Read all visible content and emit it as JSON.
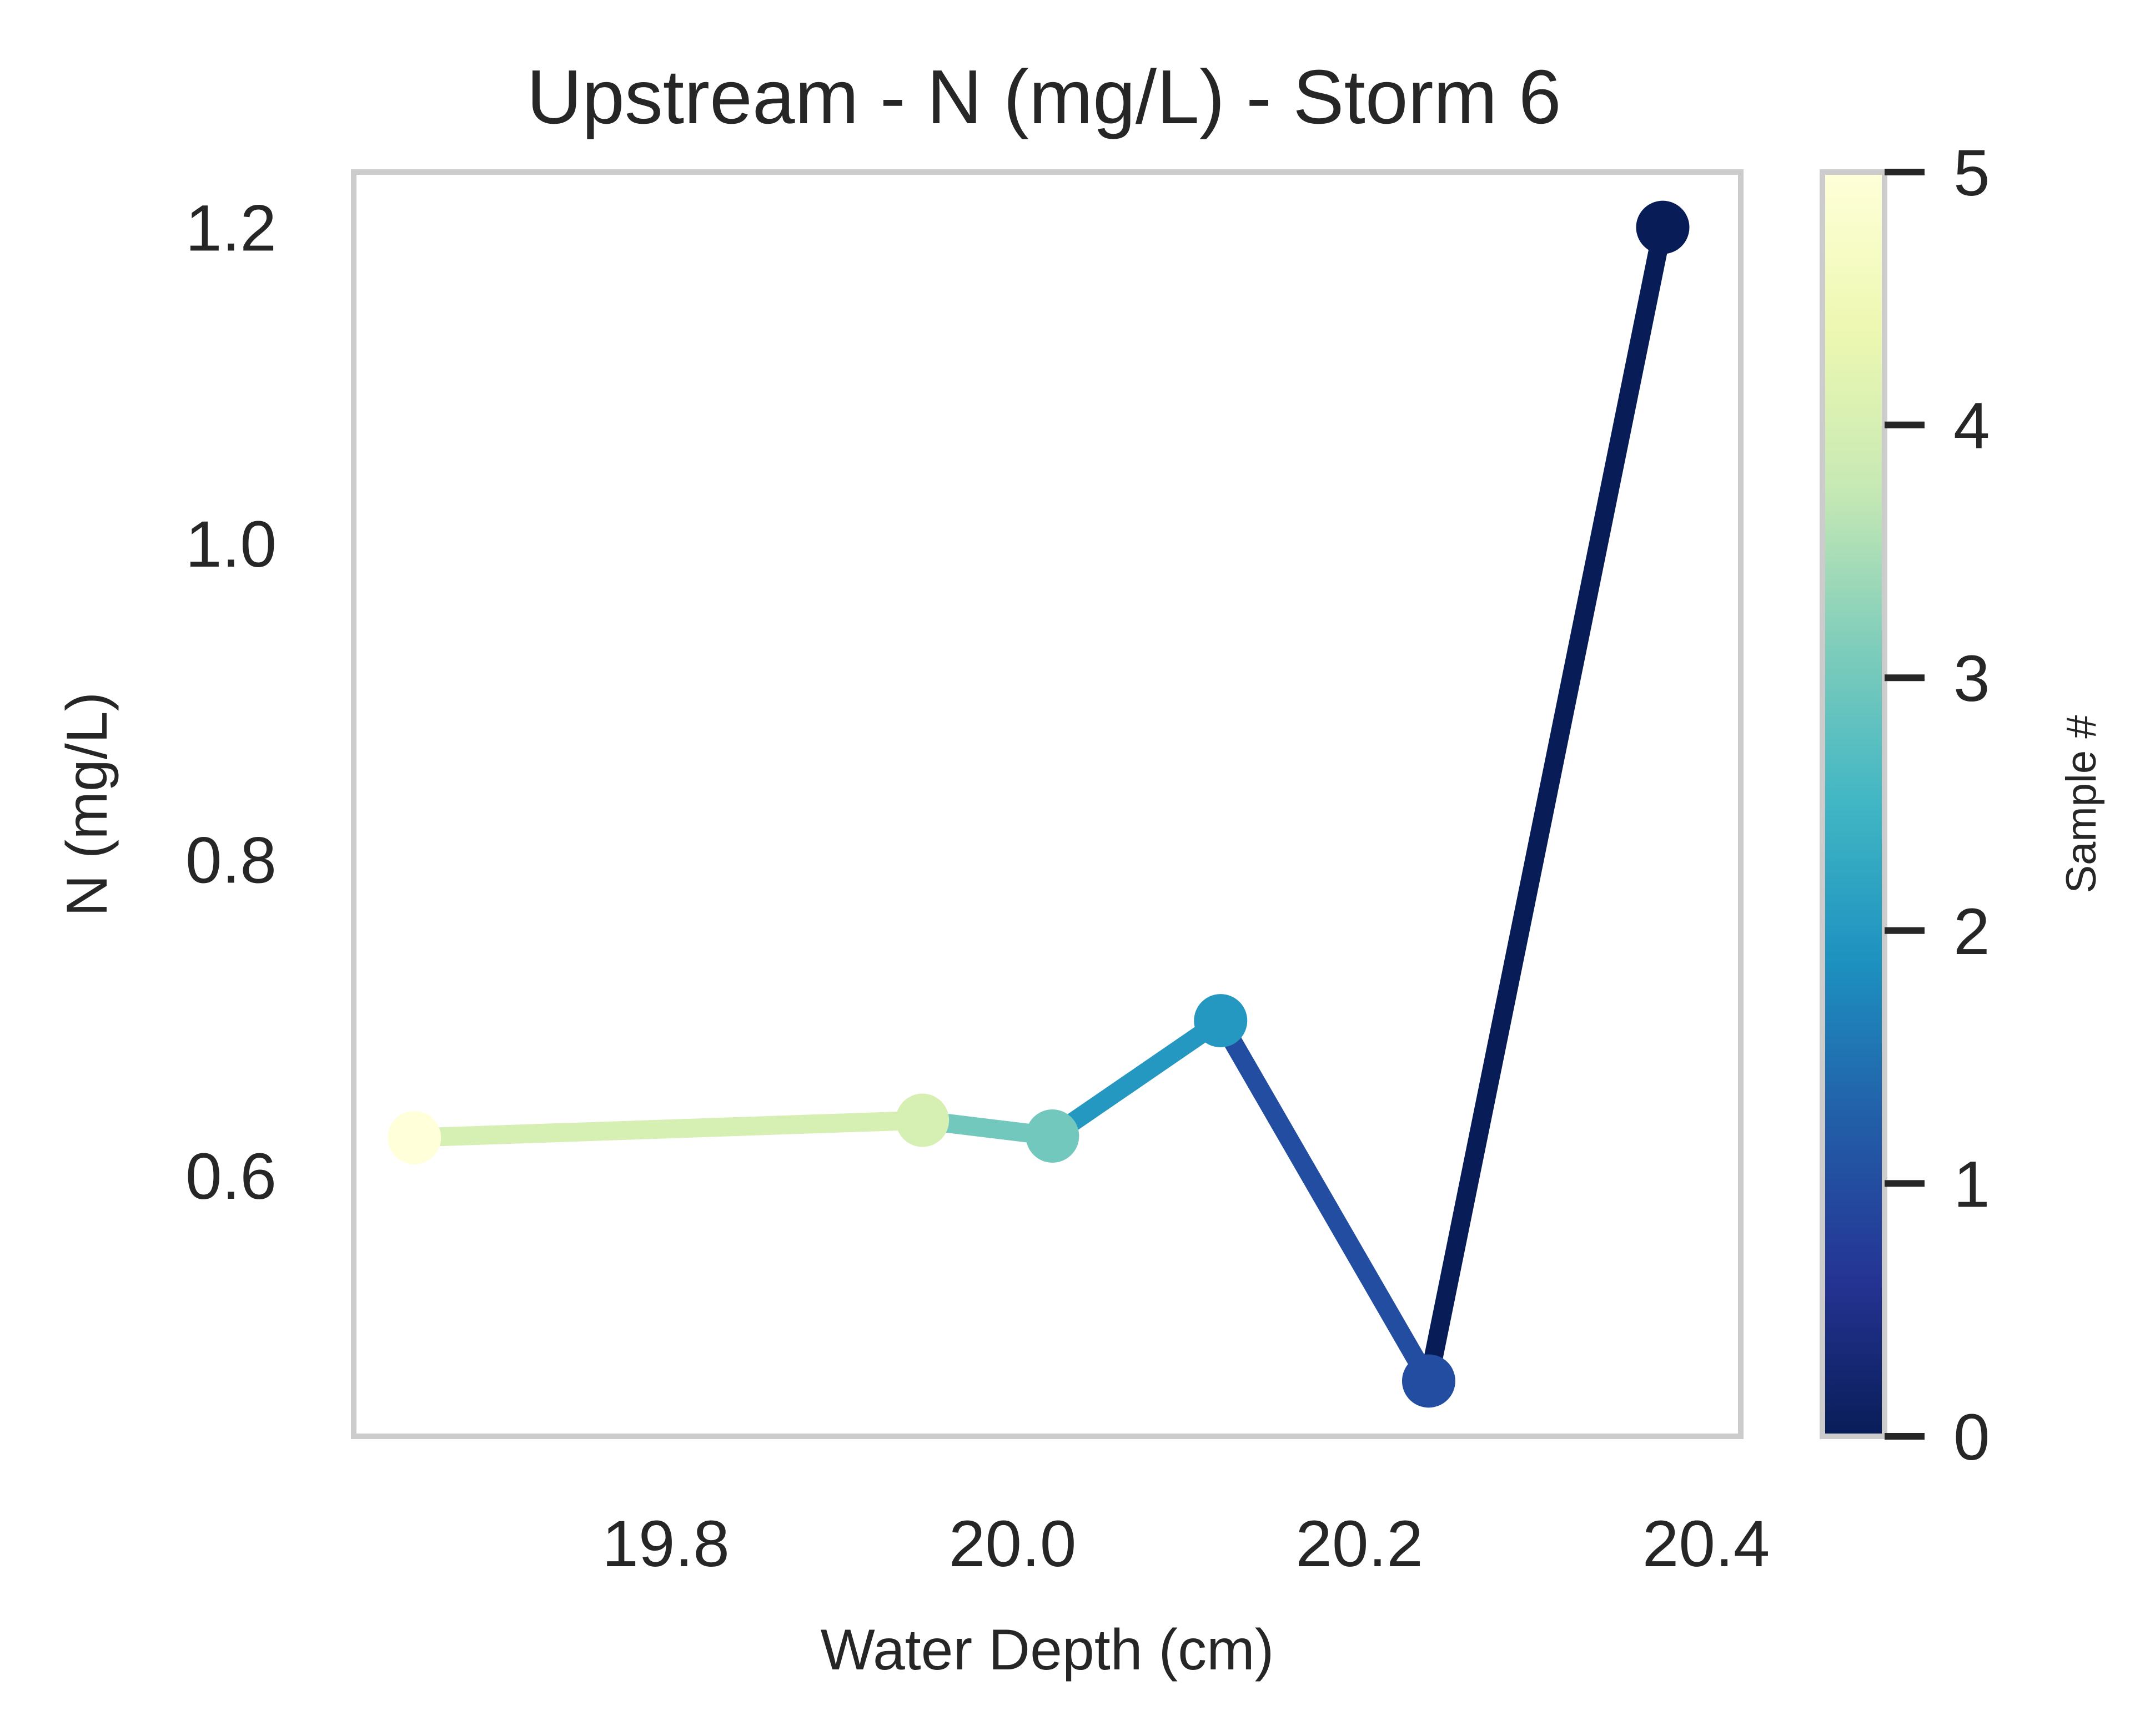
{
  "chart_data": {
    "type": "line",
    "title": "Upstream - N (mg/L) - Storm 6",
    "xlabel": "Water Depth (cm)",
    "ylabel": "N (mg/L)",
    "xlim": [
      19.62,
      20.42
    ],
    "ylim": [
      0.435,
      1.235
    ],
    "xticks": [
      "19.8",
      "20.0",
      "20.2",
      "20.4"
    ],
    "yticks": [
      "0.6",
      "0.8",
      "1.0",
      "1.2"
    ],
    "grid": false,
    "colormap": "YlGnBu",
    "series": [
      {
        "points": [
          {
            "sample": 0,
            "x": 20.375,
            "y": 1.2
          },
          {
            "sample": 1,
            "x": 20.24,
            "y": 0.47
          },
          {
            "sample": 2,
            "x": 20.12,
            "y": 0.698
          },
          {
            "sample": 3,
            "x": 20.023,
            "y": 0.625
          },
          {
            "sample": 4,
            "x": 19.948,
            "y": 0.635
          },
          {
            "sample": 5,
            "x": 19.655,
            "y": 0.624
          }
        ]
      }
    ],
    "colorbar": {
      "label": "Sample #",
      "range": [
        0,
        5
      ],
      "ticks": [
        "0",
        "1",
        "2",
        "3",
        "4",
        "5"
      ],
      "colors": [
        "#081d58",
        "#253494",
        "#225ea8",
        "#1d91c0",
        "#41b6c4",
        "#7fcdbb",
        "#c7e9b4",
        "#edf8b1",
        "#ffffd9"
      ]
    }
  }
}
